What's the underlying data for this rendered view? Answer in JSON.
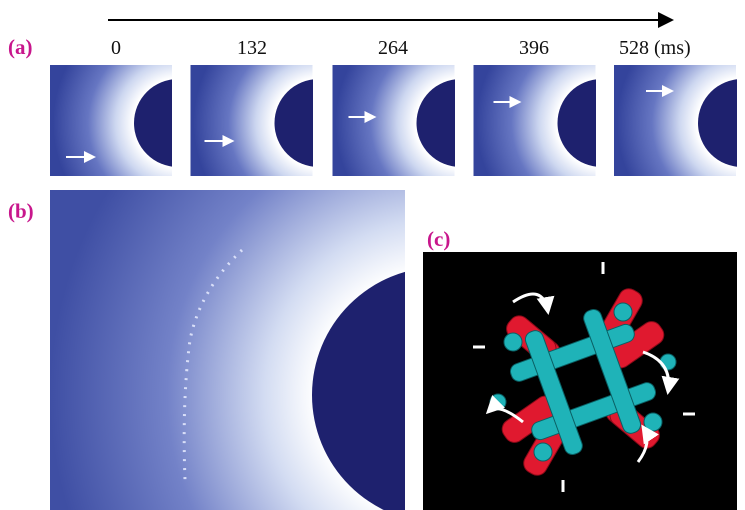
{
  "panels": {
    "a": {
      "label": "(a)",
      "times": [
        "0",
        "132",
        "264",
        "396",
        "528 (ms)"
      ]
    },
    "b": {
      "label": "(b)"
    },
    "c": {
      "label": "(c)"
    }
  }
}
